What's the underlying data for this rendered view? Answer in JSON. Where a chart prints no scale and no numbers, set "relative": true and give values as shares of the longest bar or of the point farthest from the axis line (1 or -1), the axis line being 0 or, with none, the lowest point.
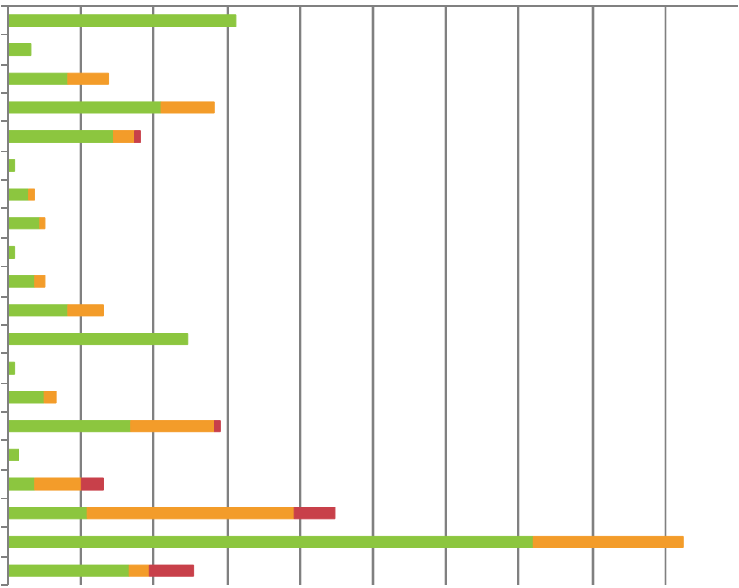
{
  "chart_data": {
    "type": "bar",
    "orientation": "horizontal",
    "stacked": true,
    "relative": true,
    "grid": "x",
    "categories": [
      null,
      null,
      null,
      null,
      null,
      null,
      null,
      null,
      null,
      null,
      null,
      null,
      null,
      null,
      null,
      null,
      null,
      null,
      null,
      null
    ],
    "series": [
      {
        "color": "#8cc63f",
        "values": [
          0.337,
          0.034,
          0.089,
          0.227,
          0.156,
          0.01,
          0.031,
          0.047,
          0.01,
          0.039,
          0.089,
          0.266,
          0.01,
          0.054,
          0.182,
          0.016,
          0.039,
          0.117,
          0.777,
          0.18
        ]
      },
      {
        "color": "#f39c2a",
        "values": [
          null,
          null,
          0.06,
          0.079,
          0.031,
          null,
          0.008,
          0.008,
          null,
          0.016,
          0.052,
          null,
          null,
          0.017,
          0.123,
          null,
          0.069,
          0.307,
          0.223,
          0.029
        ]
      },
      {
        "color": "#c8404a",
        "values": [
          null,
          null,
          null,
          null,
          0.009,
          null,
          null,
          null,
          null,
          null,
          null,
          null,
          null,
          null,
          0.009,
          null,
          0.033,
          0.06,
          null,
          0.066
        ]
      }
    ]
  }
}
